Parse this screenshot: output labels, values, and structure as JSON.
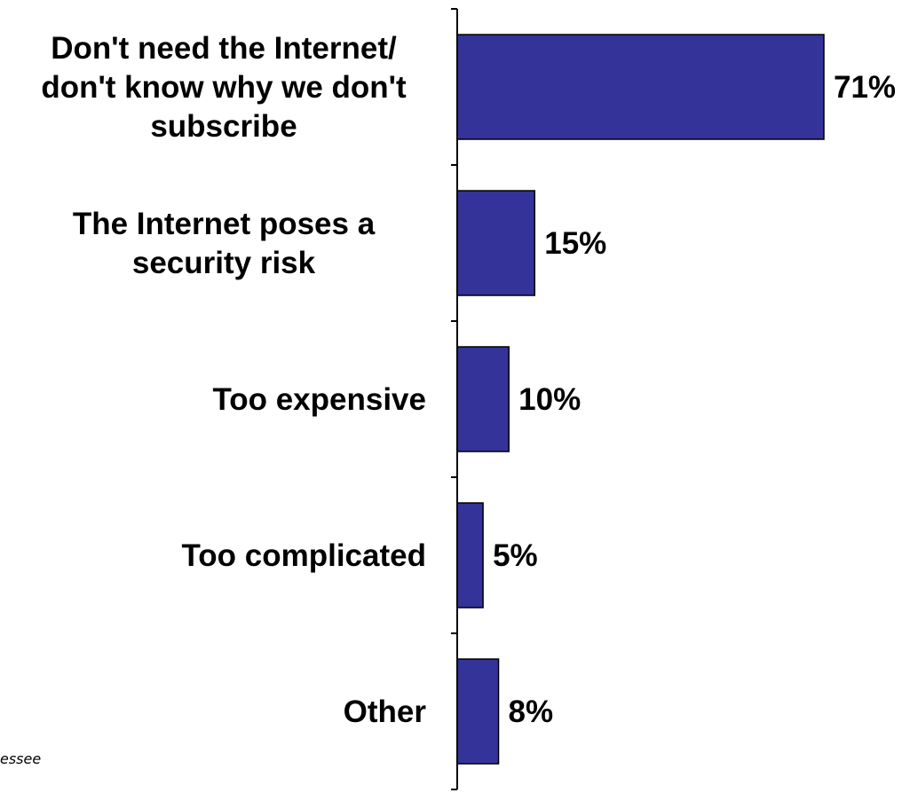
{
  "chart_data": {
    "type": "bar",
    "orientation": "horizontal",
    "categories": [
      [
        "Don't need the Internet/",
        "don't know why we don't",
        "subscribe"
      ],
      [
        "The Internet poses a",
        "security risk"
      ],
      [
        "Too expensive"
      ],
      [
        "Too complicated"
      ],
      [
        "Other"
      ]
    ],
    "values": [
      71,
      15,
      10,
      5,
      8
    ],
    "value_labels": [
      "71%",
      "15%",
      "10%",
      "5%",
      "8%"
    ],
    "xlim": [
      0,
      75
    ],
    "grid": false,
    "legend": "none",
    "bar_color": "#333399"
  },
  "footnote": "essee"
}
